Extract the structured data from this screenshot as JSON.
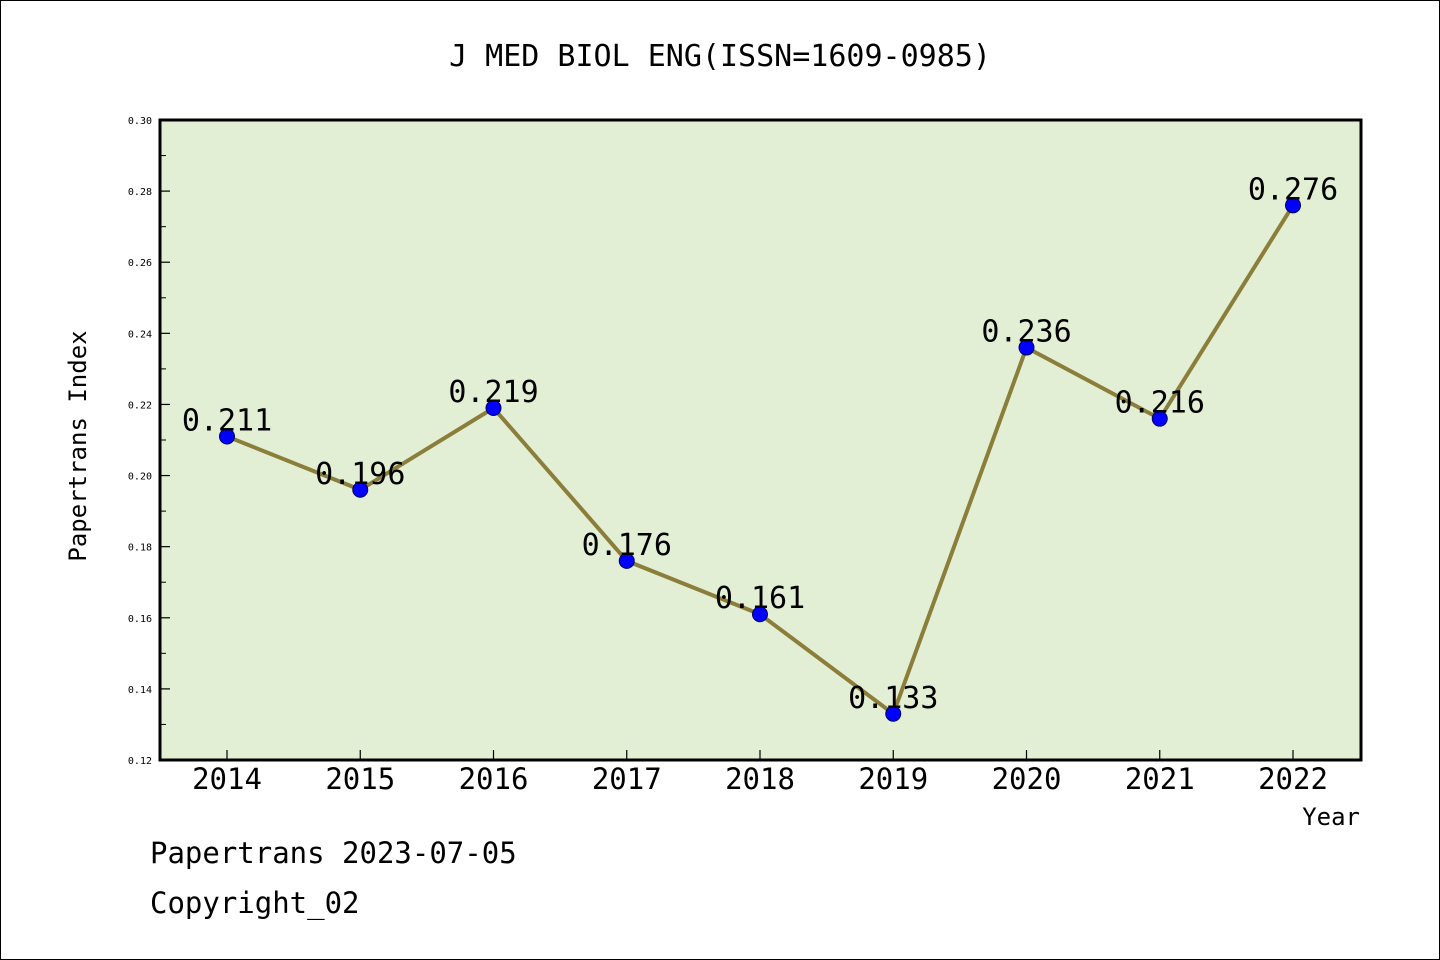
{
  "chart_data": {
    "type": "line",
    "title": "J MED BIOL ENG(ISSN=1609-0985)",
    "xlabel": "Year",
    "ylabel": "Papertrans Index",
    "categories": [
      "2014",
      "2015",
      "2016",
      "2017",
      "2018",
      "2019",
      "2020",
      "2021",
      "2022"
    ],
    "series": [
      {
        "values": [
          0.211,
          0.196,
          0.219,
          0.176,
          0.161,
          0.133,
          0.236,
          0.216,
          0.276
        ],
        "data_labels": [
          "0.211",
          "0.196",
          "0.219",
          "0.176",
          "0.161",
          "0.133",
          "0.236",
          "0.216",
          "0.276"
        ]
      }
    ],
    "ylim": [
      0.12,
      0.3
    ],
    "yticks": [
      "0.12",
      "0.14",
      "0.16",
      "0.18",
      "0.20",
      "0.22",
      "0.24",
      "0.26",
      "0.28",
      "0.30"
    ],
    "grid": false,
    "colors": {
      "plot_background": "#e2efd5",
      "line": "#8b7d3a",
      "marker": "#0000ff"
    }
  },
  "footer": {
    "line1": "Papertrans 2023-07-05",
    "line2": "Copyright_02"
  }
}
